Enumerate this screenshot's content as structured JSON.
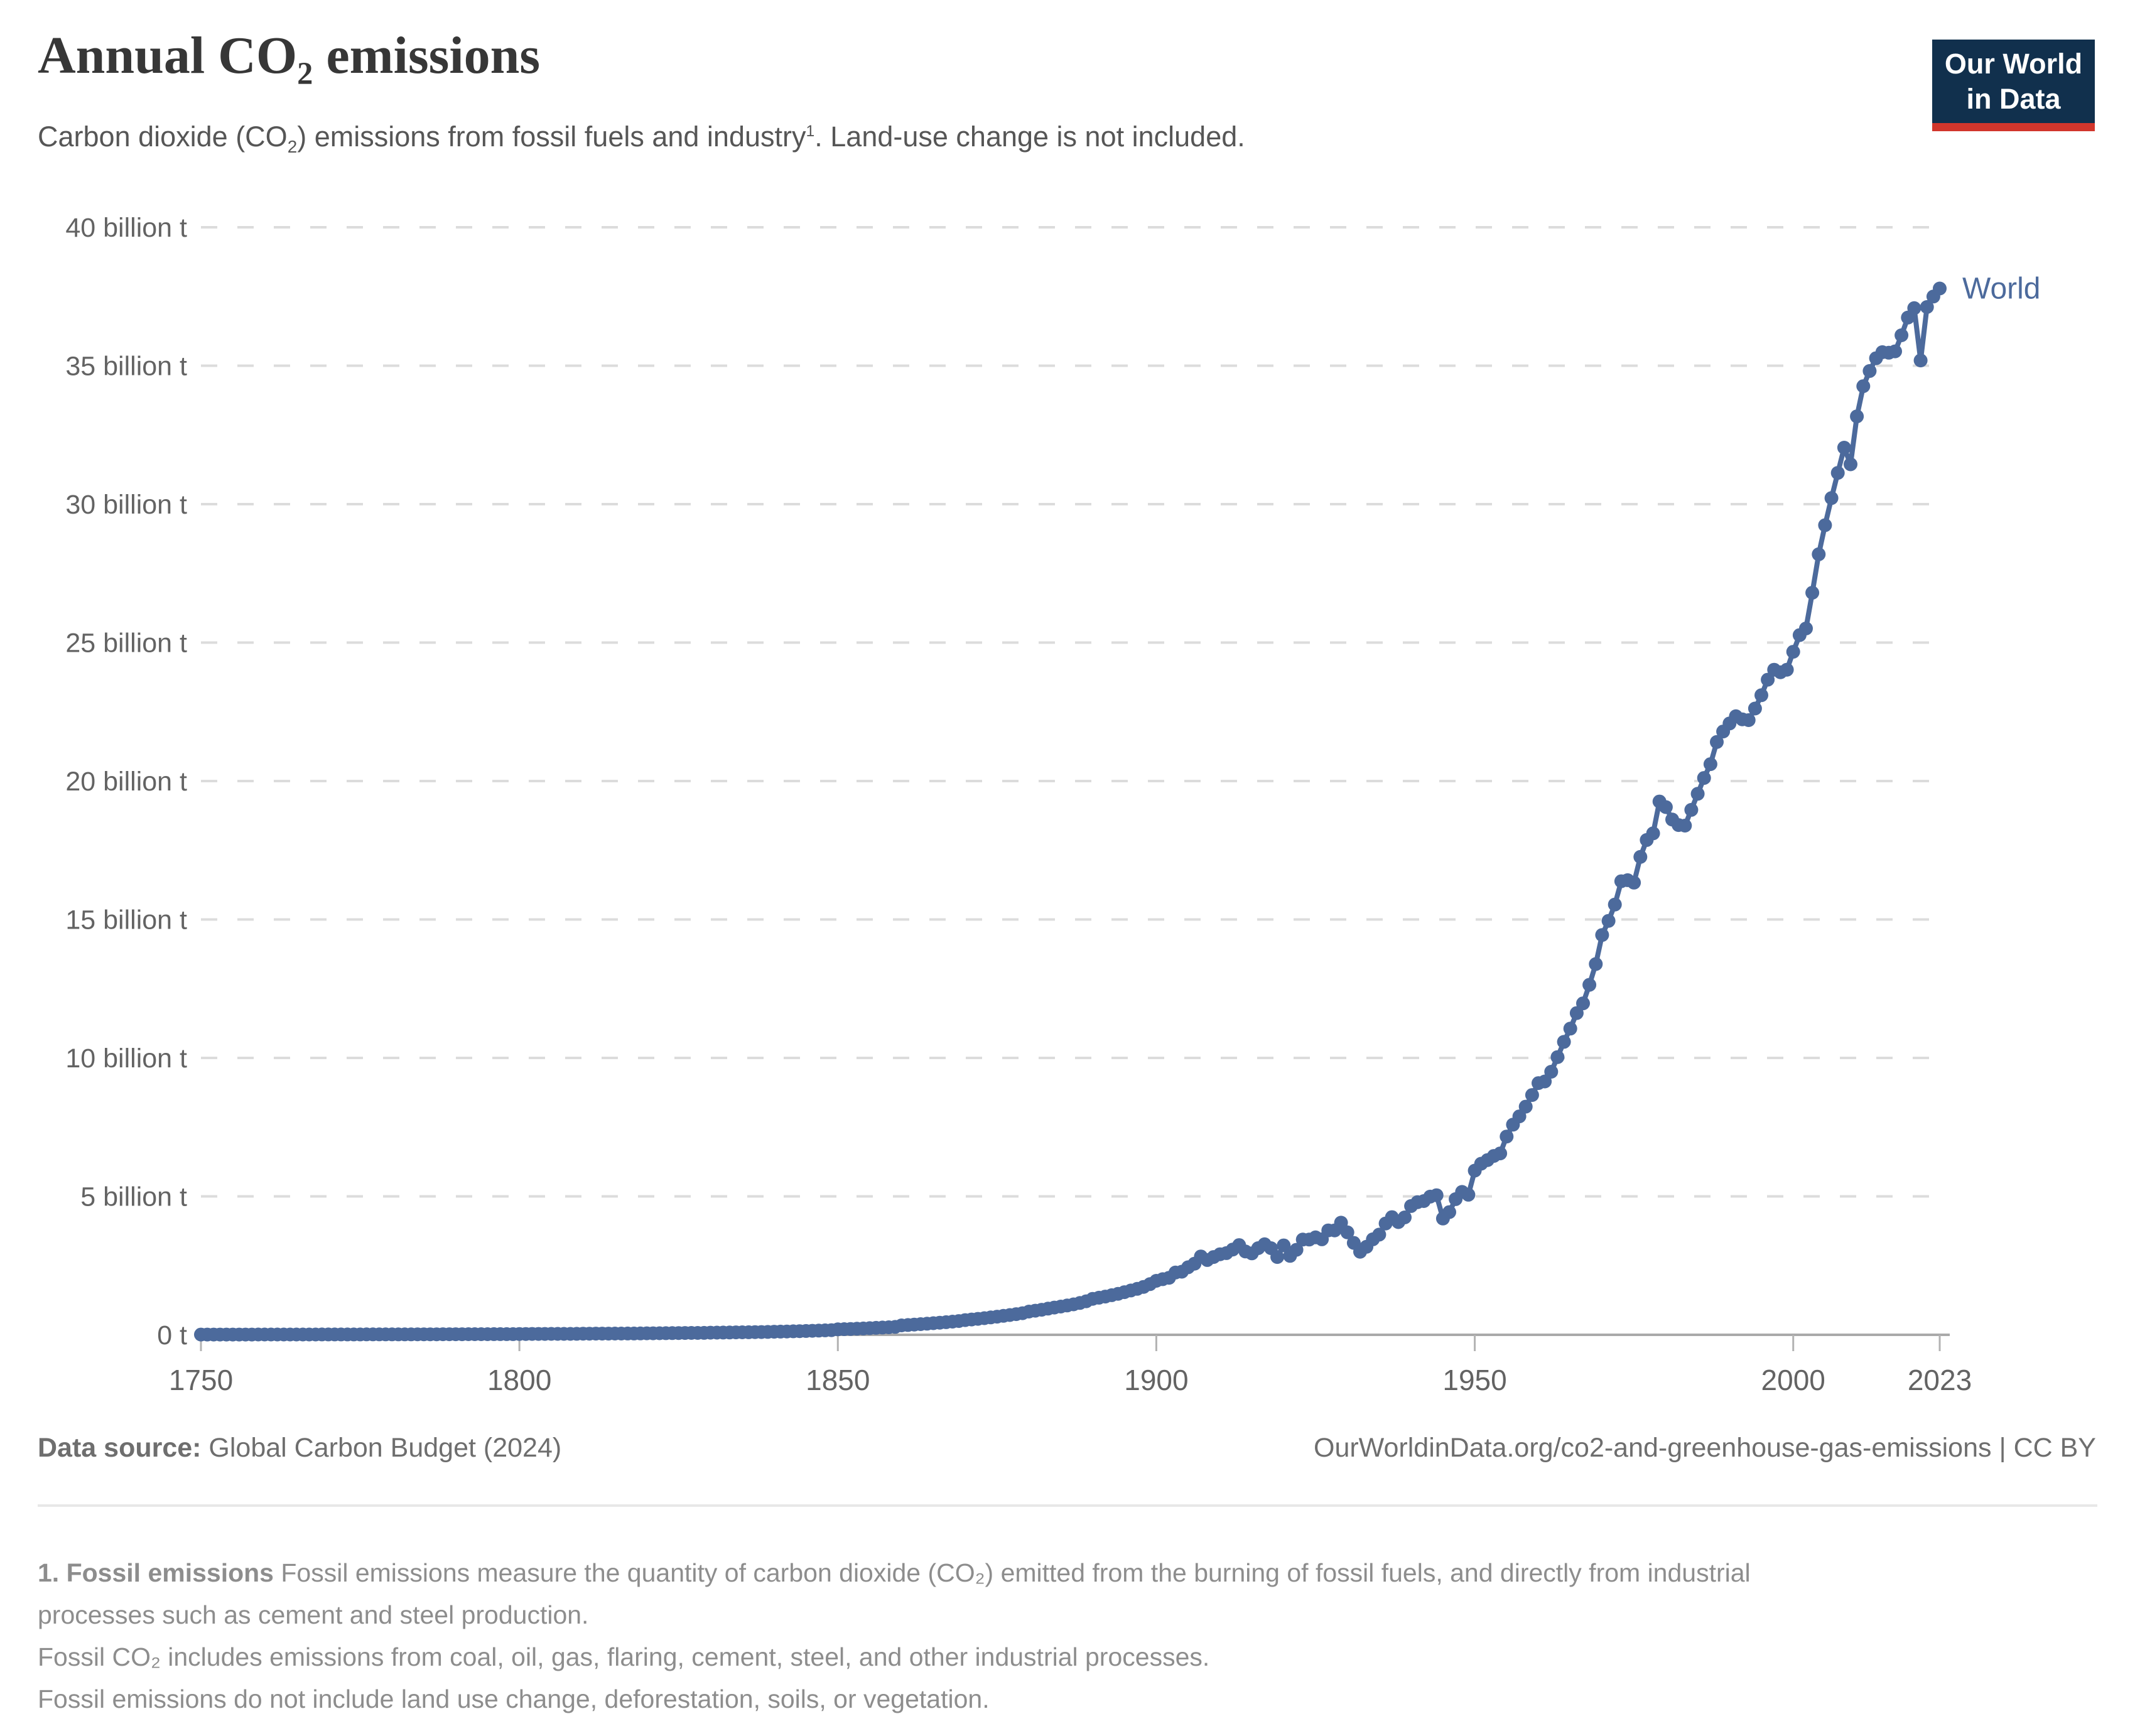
{
  "header": {
    "title_pre": "Annual CO",
    "title_sub": "2",
    "title_post": " emissions",
    "subtitle_pre": "Carbon dioxide (CO",
    "subtitle_sub": "2",
    "subtitle_mid": ") emissions from fossil fuels and industry",
    "subtitle_sup": "1",
    "subtitle_post": ". Land-use change is not included."
  },
  "logo": {
    "line1": "Our World",
    "line2": "in Data",
    "bg_color": "#11304d",
    "bar_color": "#d2362c"
  },
  "chart_data": {
    "type": "line",
    "title": "Annual CO₂ emissions",
    "unit": "billion t",
    "xlabel": "",
    "ylabel": "",
    "grid": "horizontal-dashed",
    "legend_position": "end-of-line",
    "xlim": [
      1750,
      2023
    ],
    "ylim": [
      0,
      40
    ],
    "x_start": 1750,
    "x_ticks": [
      1750,
      1800,
      1850,
      1900,
      1950,
      2000,
      2023
    ],
    "y_ticks": [
      {
        "value": 0,
        "label": "0 t"
      },
      {
        "value": 5,
        "label": "5 billion t"
      },
      {
        "value": 10,
        "label": "10 billion t"
      },
      {
        "value": 15,
        "label": "15 billion t"
      },
      {
        "value": 20,
        "label": "20 billion t"
      },
      {
        "value": 25,
        "label": "25 billion t"
      },
      {
        "value": 30,
        "label": "30 billion t"
      },
      {
        "value": 35,
        "label": "35 billion t"
      },
      {
        "value": 40,
        "label": "40 billion t"
      }
    ],
    "series": [
      {
        "name": "World",
        "color": "#4c6a9c",
        "values": [
          0.009,
          0.01,
          0.01,
          0.01,
          0.01,
          0.01,
          0.01,
          0.01,
          0.01,
          0.011,
          0.011,
          0.011,
          0.011,
          0.011,
          0.012,
          0.012,
          0.012,
          0.012,
          0.012,
          0.013,
          0.013,
          0.013,
          0.013,
          0.014,
          0.014,
          0.014,
          0.015,
          0.015,
          0.015,
          0.016,
          0.016,
          0.017,
          0.017,
          0.017,
          0.018,
          0.018,
          0.019,
          0.019,
          0.02,
          0.02,
          0.021,
          0.021,
          0.022,
          0.022,
          0.023,
          0.023,
          0.024,
          0.025,
          0.025,
          0.026,
          0.03,
          0.03,
          0.031,
          0.032,
          0.032,
          0.033,
          0.034,
          0.035,
          0.035,
          0.036,
          0.04,
          0.041,
          0.042,
          0.043,
          0.044,
          0.045,
          0.046,
          0.047,
          0.048,
          0.05,
          0.054,
          0.055,
          0.057,
          0.059,
          0.061,
          0.063,
          0.065,
          0.067,
          0.069,
          0.071,
          0.077,
          0.08,
          0.082,
          0.085,
          0.088,
          0.091,
          0.094,
          0.097,
          0.1,
          0.104,
          0.11,
          0.115,
          0.12,
          0.126,
          0.132,
          0.138,
          0.145,
          0.152,
          0.16,
          0.168,
          0.197,
          0.204,
          0.212,
          0.221,
          0.23,
          0.24,
          0.251,
          0.262,
          0.273,
          0.286,
          0.34,
          0.354,
          0.369,
          0.385,
          0.401,
          0.419,
          0.437,
          0.456,
          0.476,
          0.497,
          0.53,
          0.553,
          0.577,
          0.602,
          0.628,
          0.656,
          0.685,
          0.715,
          0.747,
          0.78,
          0.84,
          0.87,
          0.905,
          0.945,
          0.985,
          1.02,
          1.06,
          1.1,
          1.15,
          1.21,
          1.3,
          1.34,
          1.38,
          1.43,
          1.48,
          1.54,
          1.6,
          1.66,
          1.73,
          1.83,
          1.95,
          2.01,
          2.06,
          2.25,
          2.28,
          2.44,
          2.57,
          2.83,
          2.7,
          2.81,
          2.91,
          2.95,
          3.08,
          3.24,
          3.01,
          2.94,
          3.13,
          3.27,
          3.13,
          2.81,
          3.23,
          2.85,
          3.07,
          3.44,
          3.44,
          3.52,
          3.45,
          3.77,
          3.77,
          4.05,
          3.7,
          3.32,
          3.0,
          3.18,
          3.45,
          3.62,
          4.02,
          4.25,
          4.07,
          4.24,
          4.65,
          4.79,
          4.83,
          4.99,
          5.04,
          4.2,
          4.43,
          4.9,
          5.16,
          5.06,
          5.93,
          6.18,
          6.31,
          6.46,
          6.55,
          7.16,
          7.59,
          7.89,
          8.24,
          8.66,
          9.09,
          9.15,
          9.5,
          10.03,
          10.58,
          11.06,
          11.62,
          11.97,
          12.64,
          13.39,
          14.44,
          14.95,
          15.54,
          16.38,
          16.42,
          16.33,
          17.26,
          17.87,
          18.11,
          19.26,
          19.06,
          18.61,
          18.41,
          18.39,
          18.96,
          19.54,
          20.11,
          20.61,
          21.41,
          21.79,
          22.08,
          22.34,
          22.23,
          22.2,
          22.62,
          23.1,
          23.66,
          24.02,
          23.93,
          24.02,
          24.67,
          25.27,
          25.51,
          26.8,
          28.19,
          29.24,
          30.22,
          31.13,
          32.04,
          31.44,
          33.17,
          34.26,
          34.81,
          35.27,
          35.49,
          35.47,
          35.52,
          36.1,
          36.74,
          37.08,
          35.19,
          37.12,
          37.5,
          37.79
        ]
      }
    ]
  },
  "footer": {
    "datasource_label": "Data source:",
    "datasource_value": " Global Carbon Budget (2024)",
    "citation": "OurWorldinData.org/co2-and-greenhouse-gas-emissions | CC BY"
  },
  "footnotes": {
    "note1_bold": "1. Fossil emissions",
    "note1_text": " Fossil emissions measure the quantity of carbon dioxide (CO₂) emitted from the burning of fossil fuels, and directly from industrial processes such as cement and steel production.",
    "note2": "Fossil CO₂ includes emissions from coal, oil, gas, flaring, cement, steel, and other industrial processes.",
    "note3": "Fossil emissions do not include land use change, deforestation, soils, or vegetation."
  },
  "colors": {
    "series_blue": "#4c6a9c",
    "gridline": "#dcdcdc",
    "axis": "#a9a9a9",
    "tick_label": "#636363",
    "logo_navy": "#11304d",
    "logo_red": "#d2362c"
  }
}
